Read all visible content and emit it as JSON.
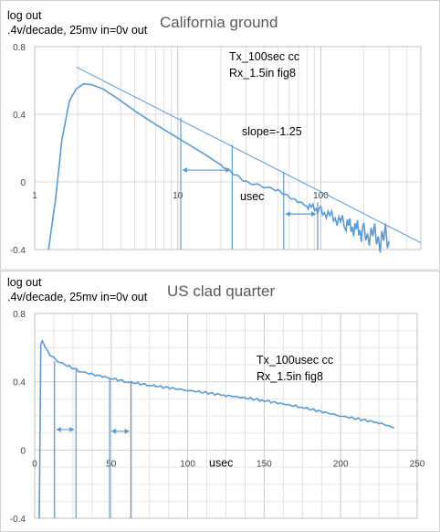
{
  "chart_data": [
    {
      "type": "line",
      "title": "California ground",
      "ylabel_lines": [
        "log out",
        ".4v/decade, 25mv in=0v out"
      ],
      "annotation_lines": [
        "Tx_100sec cc",
        "Rx_1.5in fig8"
      ],
      "slope_label": "slope=-1.25",
      "xlabel": "usec",
      "x_scale": "log",
      "xlim": [
        1,
        500
      ],
      "ylim": [
        -0.4,
        0.8
      ],
      "x_ticks": [
        "1",
        "10",
        "100"
      ],
      "y_ticks": [
        "0.8",
        "0.4",
        "0",
        "-0.4"
      ],
      "grid": true,
      "series": [
        {
          "color": "#5b9bd5",
          "x": [
            1.25,
            1.4,
            1.55,
            1.75,
            1.95,
            2.2,
            2.5,
            3,
            4,
            5,
            7,
            10,
            15,
            20,
            30,
            50,
            70,
            100,
            150,
            200,
            300
          ],
          "y": [
            -0.4,
            -0.1,
            0.25,
            0.48,
            0.55,
            0.58,
            0.575,
            0.55,
            0.48,
            0.42,
            0.34,
            0.26,
            0.17,
            0.1,
            0.0,
            -0.05,
            -0.12,
            -0.17,
            -0.25,
            -0.3,
            -0.35
          ],
          "noise_from_x": 80
        },
        {
          "color": "#5b9bd5",
          "x": [
            1.95,
            500
          ],
          "y": [
            0.68,
            -0.36
          ],
          "thin": true
        }
      ],
      "markers": {
        "x": [
          10.5,
          24,
          55,
          95
        ],
        "y_top": [
          0.38,
          0.22,
          0.06,
          -0.12
        ]
      },
      "arrows": [
        {
          "x": [
            10.5,
            24
          ],
          "y": 0.07
        },
        {
          "x": [
            55,
            95
          ],
          "y": -0.19
        }
      ]
    },
    {
      "type": "line",
      "title": "US clad quarter",
      "ylabel_lines": [
        "log out",
        ".4v/decade, 25mv in=0v out"
      ],
      "annotation_lines": [
        "Tx_100usec cc",
        "Rx_1.5in fig8"
      ],
      "xlabel": "usec",
      "xlim": [
        0,
        250
      ],
      "ylim": [
        -0.4,
        0.8
      ],
      "x_ticks": [
        "0",
        "50",
        "100",
        "150",
        "200",
        "250"
      ],
      "y_ticks": [
        "0.8",
        "0.4",
        "0",
        "-0.4"
      ],
      "grid": true,
      "series": [
        {
          "color": "#5b9bd5",
          "x": [
            3,
            4,
            5,
            7,
            10,
            15,
            20,
            30,
            40,
            50,
            60,
            75,
            100,
            125,
            150,
            175,
            200,
            225,
            235
          ],
          "y": [
            -0.4,
            0.62,
            0.64,
            0.6,
            0.56,
            0.52,
            0.5,
            0.46,
            0.44,
            0.42,
            0.4,
            0.38,
            0.35,
            0.32,
            0.29,
            0.25,
            0.2,
            0.16,
            0.13
          ]
        }
      ],
      "markers": {
        "x": [
          13,
          27,
          49,
          63
        ],
        "y_top": [
          0.52,
          0.48,
          0.42,
          0.4
        ]
      },
      "arrows": [
        {
          "x": [
            13,
            27
          ],
          "y": 0.12
        },
        {
          "x": [
            49,
            63
          ],
          "y": 0.11
        }
      ]
    }
  ]
}
